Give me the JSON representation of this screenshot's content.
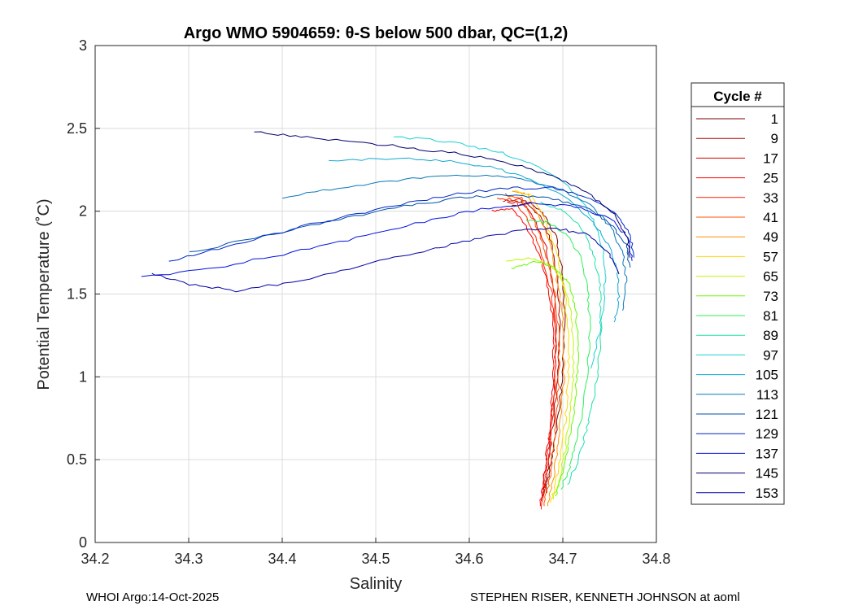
{
  "chart_data": {
    "type": "line",
    "title": "Argo WMO 5904659: θ-S below 500 dbar,  QC=(1,2)",
    "xlabel": "Salinity",
    "ylabel": "Potential Temperature (˚C)",
    "xlim": [
      34.2,
      34.8
    ],
    "ylim": [
      0,
      3
    ],
    "xticks": [
      "34.2",
      "34.3",
      "34.4",
      "34.5",
      "34.6",
      "34.7",
      "34.8"
    ],
    "yticks": [
      "0",
      "0.5",
      "1",
      "1.5",
      "2",
      "2.5",
      "3"
    ],
    "grid": true,
    "legend_title": "Cycle #",
    "legend_position": "outside-right",
    "series": [
      {
        "name": "1",
        "color": "#800000",
        "salinity": [
          34.645,
          34.665,
          34.68,
          34.693,
          34.7,
          34.702,
          34.7,
          34.695,
          34.69,
          34.685,
          34.682
        ],
        "theta": [
          2.03,
          2.05,
          1.98,
          1.85,
          1.6,
          1.3,
          1.0,
          0.75,
          0.55,
          0.4,
          0.3
        ]
      },
      {
        "name": "9",
        "color": "#a80000",
        "salinity": [
          34.64,
          34.66,
          34.675,
          34.688,
          34.695,
          34.697,
          34.695,
          34.69,
          34.686,
          34.682,
          34.679
        ],
        "theta": [
          2.05,
          2.06,
          1.97,
          1.82,
          1.58,
          1.3,
          1.0,
          0.75,
          0.55,
          0.38,
          0.28
        ]
      },
      {
        "name": "17",
        "color": "#d40000",
        "salinity": [
          34.635,
          34.655,
          34.67,
          34.682,
          34.69,
          34.693,
          34.692,
          34.688,
          34.684,
          34.68,
          34.677
        ],
        "theta": [
          2.06,
          2.07,
          1.95,
          1.78,
          1.55,
          1.28,
          1.0,
          0.75,
          0.55,
          0.38,
          0.25
        ]
      },
      {
        "name": "25",
        "color": "#f80000",
        "salinity": [
          34.625,
          34.645,
          34.662,
          34.676,
          34.686,
          34.69,
          34.69,
          34.687,
          34.683,
          34.679,
          34.676
        ],
        "theta": [
          2.0,
          2.02,
          1.9,
          1.72,
          1.5,
          1.25,
          1.0,
          0.75,
          0.55,
          0.36,
          0.22
        ]
      },
      {
        "name": "33",
        "color": "#ff2400",
        "salinity": [
          34.63,
          34.648,
          34.665,
          34.678,
          34.688,
          34.692,
          34.692,
          34.689,
          34.685,
          34.681,
          34.677
        ],
        "theta": [
          2.08,
          2.07,
          1.92,
          1.73,
          1.5,
          1.25,
          1.0,
          0.75,
          0.55,
          0.35,
          0.2
        ]
      },
      {
        "name": "41",
        "color": "#ff5000",
        "salinity": [
          34.638,
          34.655,
          34.67,
          34.683,
          34.692,
          34.696,
          34.696,
          34.693,
          34.689,
          34.685,
          34.68
        ],
        "theta": [
          2.1,
          2.08,
          1.93,
          1.73,
          1.5,
          1.25,
          1.0,
          0.75,
          0.55,
          0.36,
          0.22
        ]
      },
      {
        "name": "49",
        "color": "#ff9000",
        "salinity": [
          34.645,
          34.662,
          34.677,
          34.689,
          34.697,
          34.701,
          34.701,
          34.698,
          34.694,
          34.689,
          34.684
        ],
        "theta": [
          2.12,
          2.1,
          1.94,
          1.74,
          1.5,
          1.25,
          1.0,
          0.75,
          0.55,
          0.36,
          0.22
        ]
      },
      {
        "name": "57",
        "color": "#ffd800",
        "salinity": [
          34.65,
          34.667,
          34.682,
          34.694,
          34.702,
          34.706,
          34.706,
          34.703,
          34.698,
          34.693,
          34.687
        ],
        "theta": [
          2.12,
          2.1,
          1.94,
          1.74,
          1.5,
          1.25,
          1.0,
          0.75,
          0.55,
          0.37,
          0.24
        ]
      },
      {
        "name": "65",
        "color": "#bff800",
        "salinity": [
          34.64,
          34.665,
          34.685,
          34.7,
          34.708,
          34.711,
          34.711,
          34.707,
          34.702,
          34.697,
          34.69
        ],
        "theta": [
          1.7,
          1.72,
          1.68,
          1.58,
          1.42,
          1.2,
          0.98,
          0.75,
          0.55,
          0.38,
          0.26
        ]
      },
      {
        "name": "73",
        "color": "#6cf800",
        "salinity": [
          34.645,
          34.672,
          34.692,
          34.707,
          34.714,
          34.716,
          34.715,
          34.711,
          34.705,
          34.699,
          34.692
        ],
        "theta": [
          1.65,
          1.7,
          1.66,
          1.56,
          1.4,
          1.2,
          0.98,
          0.75,
          0.56,
          0.4,
          0.28
        ]
      },
      {
        "name": "81",
        "color": "#2ef05a",
        "salinity": [
          34.66,
          34.685,
          34.705,
          34.72,
          34.727,
          34.729,
          34.727,
          34.722,
          34.715,
          34.707,
          34.698
        ],
        "theta": [
          1.95,
          1.93,
          1.85,
          1.72,
          1.52,
          1.3,
          1.05,
          0.82,
          0.62,
          0.45,
          0.32
        ]
      },
      {
        "name": "89",
        "color": "#20e0a8",
        "salinity": [
          34.675,
          34.7,
          34.72,
          34.733,
          34.74,
          34.741,
          34.738,
          34.732,
          34.724,
          34.715,
          34.705
        ],
        "theta": [
          2.05,
          2.0,
          1.9,
          1.74,
          1.53,
          1.3,
          1.06,
          0.84,
          0.65,
          0.48,
          0.35
        ]
      },
      {
        "name": "97",
        "color": "#1ad0d8",
        "salinity": [
          34.52,
          34.58,
          34.63,
          34.67,
          34.7,
          34.722,
          34.738,
          34.745,
          34.745,
          34.74,
          34.73
        ],
        "theta": [
          2.45,
          2.42,
          2.36,
          2.28,
          2.18,
          2.05,
          1.88,
          1.7,
          1.5,
          1.3,
          1.05
        ]
      },
      {
        "name": "105",
        "color": "#10a8d0",
        "salinity": [
          34.45,
          34.52,
          34.58,
          34.63,
          34.67,
          34.705,
          34.73,
          34.748,
          34.758,
          34.76,
          34.755
        ],
        "theta": [
          2.3,
          2.32,
          2.3,
          2.26,
          2.18,
          2.08,
          1.95,
          1.8,
          1.64,
          1.48,
          1.33
        ]
      },
      {
        "name": "113",
        "color": "#0878b8",
        "salinity": [
          34.4,
          34.47,
          34.54,
          34.6,
          34.65,
          34.695,
          34.73,
          34.752,
          34.764,
          34.768,
          34.764
        ],
        "theta": [
          2.08,
          2.15,
          2.2,
          2.22,
          2.2,
          2.14,
          2.04,
          1.9,
          1.74,
          1.58,
          1.4
        ]
      },
      {
        "name": "121",
        "color": "#0050a8",
        "salinity": [
          34.3,
          34.38,
          34.46,
          34.53,
          34.59,
          34.64,
          34.685,
          34.725,
          34.752,
          34.768,
          34.772
        ],
        "theta": [
          1.75,
          1.85,
          1.95,
          2.03,
          2.08,
          2.1,
          2.08,
          2.02,
          1.92,
          1.8,
          1.66
        ]
      },
      {
        "name": "129",
        "color": "#0028c8",
        "salinity": [
          34.28,
          34.35,
          34.43,
          34.51,
          34.58,
          34.64,
          34.69,
          34.73,
          34.758,
          34.772,
          34.776
        ],
        "theta": [
          1.7,
          1.8,
          1.92,
          2.02,
          2.1,
          2.14,
          2.14,
          2.08,
          1.98,
          1.85,
          1.72
        ]
      },
      {
        "name": "137",
        "color": "#0010e0",
        "salinity": [
          34.25,
          34.33,
          34.41,
          34.49,
          34.56,
          34.62,
          34.675,
          34.72,
          34.752,
          34.77,
          34.774
        ],
        "theta": [
          1.6,
          1.66,
          1.75,
          1.85,
          1.95,
          2.02,
          2.05,
          2.02,
          1.95,
          1.84,
          1.7
        ]
      },
      {
        "name": "145",
        "color": "#000070",
        "salinity": [
          34.37,
          34.42,
          34.48,
          34.54,
          34.6,
          34.65,
          34.695,
          34.73,
          34.755,
          34.768,
          34.772
        ],
        "theta": [
          2.48,
          2.45,
          2.42,
          2.38,
          2.34,
          2.28,
          2.2,
          2.1,
          1.98,
          1.85,
          1.72
        ]
      },
      {
        "name": "153",
        "color": "#0000a8",
        "salinity": [
          34.26,
          34.3,
          34.35,
          34.42,
          34.49,
          34.55,
          34.6,
          34.65,
          34.69,
          34.725,
          34.748,
          34.76
        ],
        "theta": [
          1.62,
          1.56,
          1.52,
          1.58,
          1.68,
          1.76,
          1.82,
          1.88,
          1.9,
          1.86,
          1.76,
          1.62
        ]
      }
    ]
  },
  "footer": {
    "left": "WHOI Argo:14-Oct-2025",
    "right": "STEPHEN RISER, KENNETH JOHNSON at aoml"
  }
}
